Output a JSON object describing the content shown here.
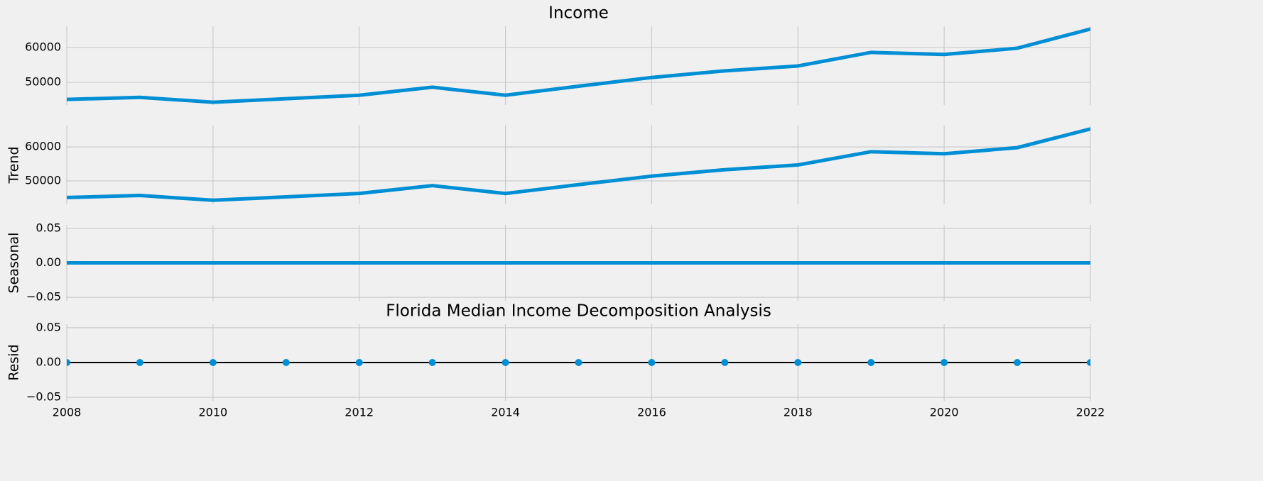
{
  "chart_data": [
    {
      "type": "line",
      "title": "Income",
      "color": "#008fd5",
      "x": [
        2008,
        2009,
        2010,
        2011,
        2012,
        2013,
        2014,
        2015,
        2016,
        2017,
        2018,
        2019,
        2020,
        2021,
        2022
      ],
      "values": [
        45100,
        45700,
        44300,
        45300,
        46300,
        48600,
        46300,
        48900,
        51400,
        53300,
        54700,
        58600,
        58000,
        59800,
        65300
      ],
      "xlim": [
        2008,
        2022
      ],
      "ylim": [
        43500,
        66100
      ],
      "yticks": [
        50000,
        60000
      ],
      "grid": true
    },
    {
      "type": "line",
      "ylabel": "Trend",
      "color": "#008fd5",
      "x": [
        2008,
        2009,
        2010,
        2011,
        2012,
        2013,
        2014,
        2015,
        2016,
        2017,
        2018,
        2019,
        2020,
        2021,
        2022
      ],
      "values": [
        45100,
        45700,
        44300,
        45300,
        46300,
        48600,
        46300,
        48900,
        51400,
        53300,
        54700,
        58600,
        58000,
        59800,
        65300
      ],
      "xlim": [
        2008,
        2022
      ],
      "ylim": [
        43100,
        66300
      ],
      "yticks": [
        50000,
        60000
      ],
      "grid": true
    },
    {
      "type": "line",
      "ylabel": "Seasonal",
      "color": "#008fd5",
      "x": [
        2008,
        2009,
        2010,
        2011,
        2012,
        2013,
        2014,
        2015,
        2016,
        2017,
        2018,
        2019,
        2020,
        2021,
        2022
      ],
      "values": [
        0,
        0,
        0,
        0,
        0,
        0,
        0,
        0,
        0,
        0,
        0,
        0,
        0,
        0,
        0
      ],
      "xlim": [
        2008,
        2022
      ],
      "ylim": [
        -0.055,
        0.055
      ],
      "yticks": [
        {
          "value": -0.05,
          "label": "−0.05"
        },
        {
          "value": 0,
          "label": "0.00"
        },
        0.05
      ],
      "grid": true
    },
    {
      "type": "scatter",
      "title": "Florida Median Income Decomposition Analysis",
      "ylabel": "Resid",
      "color": "#008fd5",
      "x": [
        2008,
        2009,
        2010,
        2011,
        2012,
        2013,
        2014,
        2015,
        2016,
        2017,
        2018,
        2019,
        2020,
        2021,
        2022
      ],
      "values": [
        0,
        0,
        0,
        0,
        0,
        0,
        0,
        0,
        0,
        0,
        0,
        0,
        0,
        0,
        0
      ],
      "reference_line": 0,
      "reference_color": "#000000",
      "xlim": [
        2008,
        2022
      ],
      "ylim": [
        -0.055,
        0.055
      ],
      "yticks": [
        {
          "value": -0.05,
          "label": "−0.05"
        },
        {
          "value": 0,
          "label": "0.00"
        },
        0.05
      ],
      "xticks": [
        2008,
        2010,
        2012,
        2014,
        2016,
        2018,
        2020,
        2022
      ],
      "grid": true
    }
  ]
}
